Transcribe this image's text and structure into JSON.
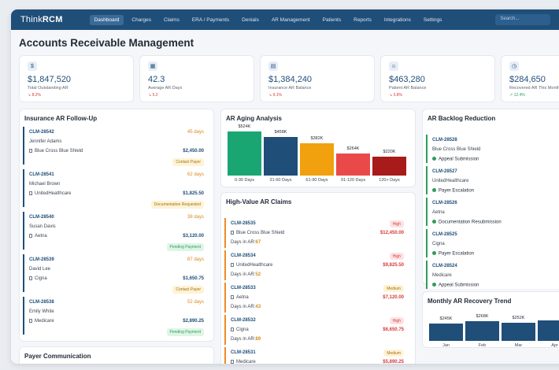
{
  "app": {
    "brand_main": "Think",
    "brand_accent": "RCM"
  },
  "nav": {
    "items": [
      "Dashboard",
      "Charges",
      "Claims",
      "ERA / Payments",
      "Denials",
      "AR Management",
      "Patients",
      "Reports",
      "Integrations",
      "Settings"
    ],
    "active_index": 0,
    "search_placeholder": "Search..."
  },
  "page": {
    "title": "Accounts Receivable Management"
  },
  "kpis": [
    {
      "icon": "dollar-icon",
      "value": "$1,847,520",
      "label": "Total Outstanding AR",
      "change": "↘ 8.2%",
      "trend": "down"
    },
    {
      "icon": "calendar-icon",
      "value": "42.3",
      "label": "Average AR Days",
      "change": "↘ 5.2",
      "trend": "down"
    },
    {
      "icon": "insurance-icon",
      "value": "$1,384,240",
      "label": "Insurance AR Balance",
      "change": "↘ 9.1%",
      "trend": "down"
    },
    {
      "icon": "patient-icon",
      "value": "$463,280",
      "label": "Patient AR Balance",
      "change": "↘ 3.8%",
      "trend": "down"
    },
    {
      "icon": "recovered-icon",
      "value": "$284,650",
      "label": "Recovered AR This Month",
      "change": "↗ 12.4%",
      "trend": "up"
    }
  ],
  "followup": {
    "title": "Insurance AR Follow-Up",
    "claims": [
      {
        "id": "CLM-28542",
        "days": "45 days",
        "name": "Jennifer Adams",
        "insurer": "Blue Cross Blue Shield",
        "amount": "$2,450.00",
        "status": "Contact Payer",
        "status_type": "contact"
      },
      {
        "id": "CLM-28541",
        "days": "62 days",
        "name": "Michael Brown",
        "insurer": "UnitedHealthcare",
        "amount": "$1,825.50",
        "status": "Documentation Requested",
        "status_type": "doc"
      },
      {
        "id": "CLM-28540",
        "days": "38 days",
        "name": "Susan Davis",
        "insurer": "Aetna",
        "amount": "$3,120.00",
        "status": "Pending Payment",
        "status_type": "pay"
      },
      {
        "id": "CLM-28539",
        "days": "87 days",
        "name": "David Lee",
        "insurer": "Cigna",
        "amount": "$1,650.75",
        "status": "Contact Payer",
        "status_type": "contact"
      },
      {
        "id": "CLM-28538",
        "days": "52 days",
        "name": "Emily White",
        "insurer": "Medicare",
        "amount": "$2,890.25",
        "status": "Pending Payment",
        "status_type": "pay"
      }
    ]
  },
  "payer_comm": {
    "title": "Payer Communication"
  },
  "aging": {
    "title": "AR Aging Analysis",
    "chart_data": {
      "type": "bar",
      "categories": [
        "0-30 Days",
        "31-60 Days",
        "61-90 Days",
        "91-120 Days",
        "120+ Days"
      ],
      "values": [
        524,
        458,
        382,
        264,
        220
      ],
      "labels": [
        "$524K",
        "$458K",
        "$382K",
        "$264K",
        "$220K"
      ],
      "colors": [
        "#1aa673",
        "#1f4e79",
        "#f0a10d",
        "#ea4949",
        "#a81b1b"
      ],
      "ylim": [
        0,
        524
      ]
    }
  },
  "high_value": {
    "title": "High-Value AR Claims",
    "claims": [
      {
        "id": "CLM-28535",
        "priority": "High",
        "insurer": "Blue Cross Blue Shield",
        "amount": "$12,450.00",
        "days_label": "Days in AR:",
        "days": "67"
      },
      {
        "id": "CLM-28534",
        "priority": "High",
        "insurer": "UnitedHealthcare",
        "amount": "$9,825.50",
        "days_label": "Days in AR:",
        "days": "52"
      },
      {
        "id": "CLM-28533",
        "priority": "Medium",
        "insurer": "Aetna",
        "amount": "$7,120.00",
        "days_label": "Days in AR:",
        "days": "43"
      },
      {
        "id": "CLM-28532",
        "priority": "High",
        "insurer": "Cigna",
        "amount": "$6,650.75",
        "days_label": "Days in AR:",
        "days": "89"
      },
      {
        "id": "CLM-28531",
        "priority": "Medium",
        "insurer": "Medicare",
        "amount": "$5,890.25",
        "days_label": "",
        "days": ""
      }
    ]
  },
  "backlog": {
    "title": "AR Backlog Reduction",
    "items": [
      {
        "id": "CLM-28528",
        "insurer": "Blue Cross Blue Shield",
        "status": "Appeal Submission"
      },
      {
        "id": "CLM-28527",
        "insurer": "UnitedHealthcare",
        "status": "Payer Escalation"
      },
      {
        "id": "CLM-28526",
        "insurer": "Aetna",
        "status": "Documentation Resubmission"
      },
      {
        "id": "CLM-28525",
        "insurer": "Cigna",
        "status": "Payer Escalation"
      },
      {
        "id": "CLM-28524",
        "insurer": "Medicare",
        "status": "Appeal Submission"
      }
    ]
  },
  "recovery": {
    "title": "Monthly AR Recovery Trend",
    "chart_data": {
      "type": "bar",
      "categories": [
        "Jan",
        "Feb",
        "Mar",
        "Apr"
      ],
      "values": [
        245,
        268,
        252,
        284
      ],
      "labels": [
        "$245K",
        "$268K",
        "$252K",
        ""
      ],
      "color": "#1f4e79"
    }
  }
}
